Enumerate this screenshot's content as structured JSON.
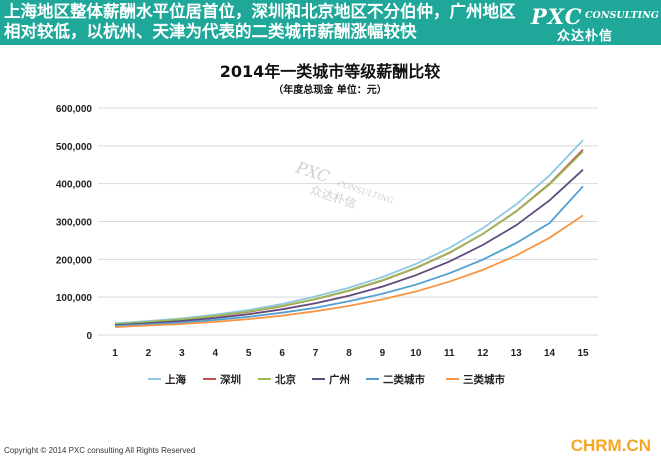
{
  "header": {
    "text": "上海地区整体薪酬水平位居首位，深圳和北京地区不分伯仲，广州地区相对较低，以杭州、天津为代表的二类城市薪酬涨幅较快"
  },
  "logo": {
    "main": "PXC",
    "sub": "CONSULTING",
    "cn": "众达朴信"
  },
  "watermark": {
    "main": "PXC",
    "sub": "CONSULTING",
    "cn": "众达朴信"
  },
  "footer": {
    "copyright": "Copyright © 2014 PXC consulting All Rights Reserved",
    "site": "CHRM.CN"
  },
  "chart_data": {
    "type": "line",
    "title": "2014年一类城市等级薪酬比较",
    "subtitle": "（年度总现金 单位：元）",
    "x": [
      1,
      2,
      3,
      4,
      5,
      6,
      7,
      8,
      9,
      10,
      11,
      12,
      13,
      14,
      15
    ],
    "ylim": [
      0,
      600000
    ],
    "yticks": [
      "0",
      "100,000",
      "200,000",
      "300,000",
      "400,000",
      "500,000",
      "600,000"
    ],
    "grid": true,
    "legend_position": "bottom",
    "series": [
      {
        "name": "上海",
        "color": "#8ec9df",
        "values": [
          31000,
          37000,
          44000,
          54000,
          66000,
          82000,
          102000,
          125000,
          153000,
          188000,
          230000,
          282000,
          345000,
          422000,
          515000
        ]
      },
      {
        "name": "深圳",
        "color": "#c0504d",
        "values": [
          28000,
          34000,
          41000,
          50000,
          61000,
          76000,
          95000,
          117000,
          144000,
          177000,
          217000,
          267000,
          327000,
          400000,
          490000
        ]
      },
      {
        "name": "北京",
        "color": "#9bbb59",
        "values": [
          28500,
          34500,
          41500,
          50500,
          62000,
          77000,
          95500,
          118000,
          145000,
          178000,
          218000,
          267000,
          326000,
          398000,
          485000
        ]
      },
      {
        "name": "广州",
        "color": "#604a7b",
        "values": [
          26000,
          31000,
          37000,
          45000,
          55000,
          68000,
          84000,
          104000,
          128000,
          158000,
          194000,
          238000,
          290000,
          356000,
          437000
        ]
      },
      {
        "name": "二类城市",
        "color": "#4f9fd2",
        "values": [
          24000,
          28000,
          33000,
          40000,
          48000,
          59000,
          72000,
          89000,
          109000,
          133000,
          163000,
          199000,
          243000,
          296000,
          393000
        ]
      },
      {
        "name": "三类城市",
        "color": "#f79646",
        "values": [
          21000,
          25000,
          29000,
          35000,
          42000,
          51000,
          63000,
          77000,
          94000,
          115000,
          141000,
          172000,
          210000,
          257000,
          316000
        ]
      }
    ]
  }
}
